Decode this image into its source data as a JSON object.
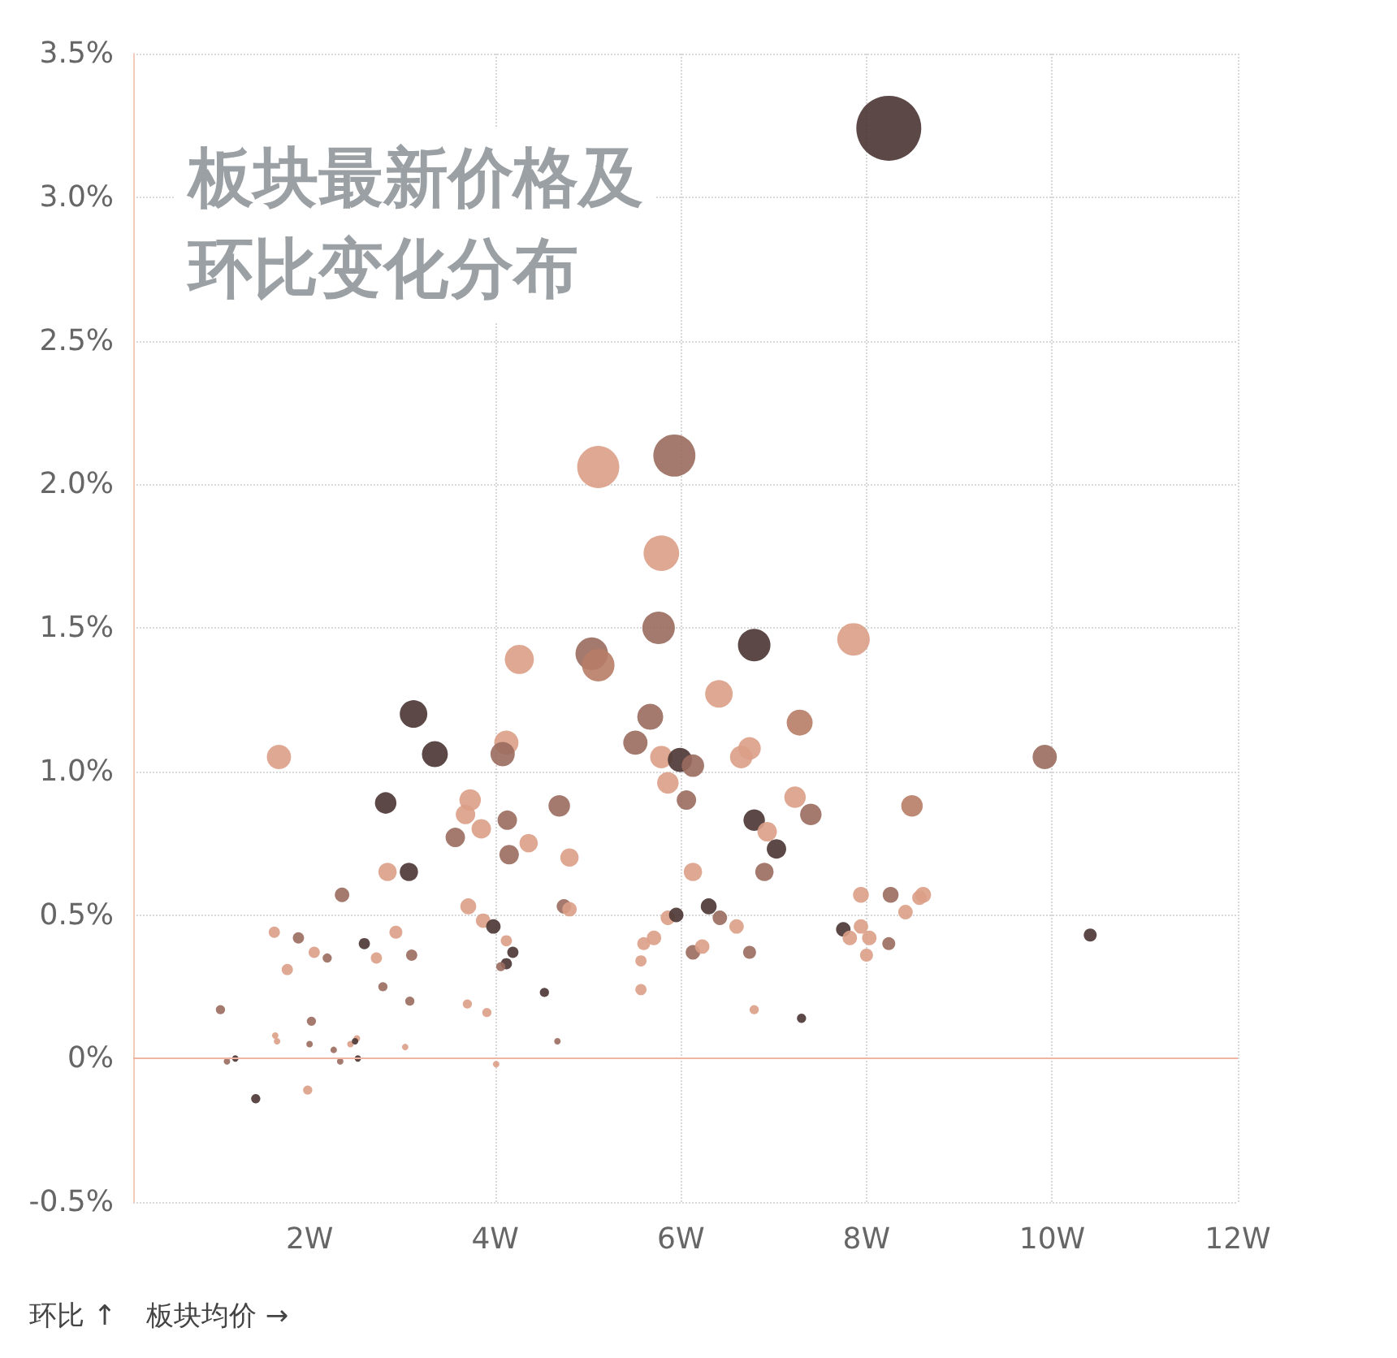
{
  "chart_data": {
    "type": "bubble",
    "title": "板块最新价格及环比变化分布",
    "xlabel": "板块均价 →",
    "ylabel": "环比 ↑",
    "xlim": [
      0.1,
      12
    ],
    "xticks": [
      {
        "value": 2,
        "label": "2W"
      },
      {
        "value": 4,
        "label": "4W"
      },
      {
        "value": 6,
        "label": "6W"
      },
      {
        "value": 8,
        "label": "8W"
      },
      {
        "value": 10,
        "label": "10W"
      },
      {
        "value": 12,
        "label": "12W"
      }
    ],
    "ylim": [
      -0.5,
      3.5
    ],
    "yticks": [
      {
        "value": -0.5,
        "label": "-0.5%"
      },
      {
        "value": 0,
        "label": "0%"
      },
      {
        "value": 0.5,
        "label": "0.5%"
      },
      {
        "value": 1,
        "label": "1.0%"
      },
      {
        "value": 1.5,
        "label": "1.5%"
      },
      {
        "value": 2,
        "label": "2.0%"
      },
      {
        "value": 2.5,
        "label": "2.5%"
      },
      {
        "value": 3,
        "label": "3.0%"
      },
      {
        "value": 3.5,
        "label": "3.5%"
      }
    ],
    "grid": true,
    "marker": "circle",
    "ref_lines": [
      {
        "axis": "y",
        "value": 0,
        "color": "#f0b4a2"
      }
    ],
    "series": [
      {
        "x": [
          8.24,
          5.93,
          5.11,
          5.79,
          5.76,
          4.26,
          5.04,
          5.11,
          6.79,
          7.86,
          6.41,
          3.12,
          5.67,
          7.28,
          3.35,
          1.67,
          4.12,
          4.08,
          5.51,
          5.79,
          5.99,
          6.13,
          6.65,
          6.74,
          9.92,
          2.82,
          3.73,
          3.68,
          5.86,
          6.06,
          4.69,
          4.13,
          3.85,
          3.57,
          4.36,
          6.79,
          7.23,
          7.4,
          8.49,
          6.93,
          7.03,
          4.15,
          4.8,
          2.84,
          3.07,
          6.13,
          6.9,
          2.35,
          3.71,
          3.87,
          3.98,
          4.74,
          4.8,
          1.62,
          1.88,
          1.76,
          2.05,
          2.19,
          2.59,
          2.93,
          2.72,
          3.1,
          2.79,
          3.08,
          4.12,
          4.19,
          4.12,
          4.06,
          3.91,
          3.7,
          4.53,
          4.67,
          1.04,
          1.63,
          1.65,
          1.11,
          1.2,
          1.42,
          1.98,
          2.02,
          2,
          2.26,
          2.33,
          2.44,
          2.51,
          2.49,
          2.52,
          3.03,
          4.01,
          5.71,
          5.86,
          5.95,
          5.6,
          5.57,
          5.57,
          6.3,
          6.42,
          6.6,
          6.13,
          6.23,
          6.74,
          6.79,
          7.3,
          7.75,
          7.82,
          7.94,
          8.03,
          8,
          7.94,
          8.26,
          8.42,
          8.61,
          8.24,
          10.41,
          8.57
        ],
        "values": [
          3.24,
          2.1,
          2.06,
          1.76,
          1.5,
          1.39,
          1.41,
          1.37,
          1.44,
          1.46,
          1.27,
          1.2,
          1.19,
          1.17,
          1.06,
          1.05,
          1.1,
          1.06,
          1.1,
          1.05,
          1.04,
          1.02,
          1.05,
          1.08,
          1.05,
          0.89,
          0.9,
          0.85,
          0.96,
          0.9,
          0.88,
          0.83,
          0.8,
          0.77,
          0.75,
          0.83,
          0.91,
          0.85,
          0.88,
          0.79,
          0.73,
          0.71,
          0.7,
          0.65,
          0.65,
          0.65,
          0.65,
          0.57,
          0.53,
          0.48,
          0.46,
          0.53,
          0.52,
          0.44,
          0.42,
          0.31,
          0.37,
          0.35,
          0.4,
          0.44,
          0.35,
          0.36,
          0.25,
          0.2,
          0.41,
          0.37,
          0.33,
          0.32,
          0.16,
          0.19,
          0.23,
          0.06,
          0.17,
          0.08,
          0.06,
          -0.01,
          0,
          -0.14,
          -0.11,
          0.13,
          0.05,
          0.03,
          -0.01,
          0.05,
          0.07,
          0.06,
          0,
          0.04,
          -0.02,
          0.42,
          0.49,
          0.5,
          0.4,
          0.34,
          0.24,
          0.53,
          0.49,
          0.46,
          0.37,
          0.39,
          0.37,
          0.17,
          0.14,
          0.45,
          0.42,
          0.46,
          0.42,
          0.36,
          0.57,
          0.57,
          0.51,
          0.57,
          0.4,
          0.43,
          0.56
        ],
        "sizes": [
          1,
          0.42,
          0.42,
          0.3,
          0.25,
          0.2,
          0.25,
          0.25,
          0.25,
          0.25,
          0.18,
          0.18,
          0.16,
          0.16,
          0.16,
          0.14,
          0.14,
          0.14,
          0.14,
          0.12,
          0.14,
          0.12,
          0.12,
          0.12,
          0.14,
          0.11,
          0.11,
          0.09,
          0.11,
          0.09,
          0.11,
          0.09,
          0.09,
          0.09,
          0.08,
          0.11,
          0.11,
          0.11,
          0.11,
          0.09,
          0.09,
          0.09,
          0.08,
          0.08,
          0.08,
          0.08,
          0.08,
          0.05,
          0.06,
          0.05,
          0.05,
          0.05,
          0.05,
          0.03,
          0.03,
          0.03,
          0.03,
          0.02,
          0.03,
          0.04,
          0.03,
          0.03,
          0.02,
          0.02,
          0.03,
          0.03,
          0.03,
          0.02,
          0.02,
          0.02,
          0.02,
          0.01,
          0.02,
          0.01,
          0.01,
          0.01,
          0.01,
          0.02,
          0.02,
          0.02,
          0.01,
          0.01,
          0.01,
          0.01,
          0.01,
          0.01,
          0.01,
          0.01,
          0.01,
          0.05,
          0.05,
          0.05,
          0.04,
          0.03,
          0.03,
          0.06,
          0.05,
          0.05,
          0.05,
          0.05,
          0.04,
          0.02,
          0.02,
          0.05,
          0.05,
          0.05,
          0.05,
          0.04,
          0.06,
          0.06,
          0.05,
          0.06,
          0.04,
          0.04,
          0.05
        ],
        "colors": [
          "#4a3533",
          "#9a6b5e",
          "#dc9f87",
          "#dc9f87",
          "#9a6b5e",
          "#dc9f87",
          "#9a6b5e",
          "#b77c66",
          "#4a3533",
          "#dc9f87",
          "#dc9f87",
          "#4a3533",
          "#9a6b5e",
          "#b77c66",
          "#4a3533",
          "#dc9f87",
          "#dc9f87",
          "#9a6b5e",
          "#9a6b5e",
          "#dc9f87",
          "#4a3533",
          "#9a6b5e",
          "#dc9f87",
          "#dc9f87",
          "#9a6b5e",
          "#4a3533",
          "#dc9f87",
          "#dc9f87",
          "#dc9f87",
          "#9a6b5e",
          "#9a6b5e",
          "#9a6b5e",
          "#dc9f87",
          "#9a6b5e",
          "#dc9f87",
          "#4a3533",
          "#dc9f87",
          "#9a6b5e",
          "#b77c66",
          "#dc9f87",
          "#4a3533",
          "#9a6b5e",
          "#dc9f87",
          "#dc9f87",
          "#4a3533",
          "#dc9f87",
          "#9a6b5e",
          "#9a6b5e",
          "#dc9f87",
          "#dc9f87",
          "#4a3533",
          "#9a6b5e",
          "#dc9f87",
          "#dc9f87",
          "#9a6b5e",
          "#dc9f87",
          "#dc9f87",
          "#9a6b5e",
          "#4a3533",
          "#dc9f87",
          "#dc9f87",
          "#9a6b5e",
          "#9a6b5e",
          "#9a6b5e",
          "#dc9f87",
          "#4a3533",
          "#4a3533",
          "#9a6b5e",
          "#dc9f87",
          "#dc9f87",
          "#4a3533",
          "#9a6b5e",
          "#9a6b5e",
          "#dc9f87",
          "#dc9f87",
          "#9a6b5e",
          "#4a3533",
          "#4a3533",
          "#dc9f87",
          "#9a6b5e",
          "#9a6b5e",
          "#9a6b5e",
          "#9a6b5e",
          "#dc9f87",
          "#dc9f87",
          "#4a3533",
          "#4a3533",
          "#dc9f87",
          "#dc9f87",
          "#dc9f87",
          "#dc9f87",
          "#4a3533",
          "#dc9f87",
          "#dc9f87",
          "#dc9f87",
          "#4a3533",
          "#9a6b5e",
          "#dc9f87",
          "#9a6b5e",
          "#dc9f87",
          "#9a6b5e",
          "#dc9f87",
          "#4a3533",
          "#4a3533",
          "#dc9f87",
          "#dc9f87",
          "#dc9f87",
          "#dc9f87",
          "#dc9f87",
          "#9a6b5e",
          "#dc9f87",
          "#dc9f87",
          "#9a6b5e",
          "#4a3533",
          "#dc9f87"
        ]
      }
    ]
  }
}
